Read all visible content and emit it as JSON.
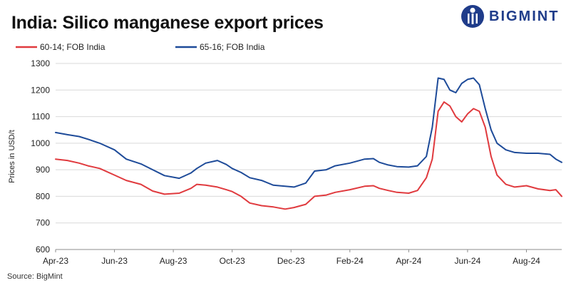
{
  "brand": {
    "name": "BIGMINT",
    "color": "#1f3c8a"
  },
  "footer": {
    "source": "Source: BigMint"
  },
  "chart_data": {
    "type": "line",
    "title": "India: Silico manganese export prices",
    "ylabel": "Prices in USD/t",
    "xlabel": "",
    "ylim": [
      600,
      1300
    ],
    "yticks": [
      600,
      700,
      800,
      900,
      1000,
      1100,
      1200,
      1300
    ],
    "x_range_months": [
      0,
      17.2
    ],
    "xticks": [
      {
        "label": "Apr-23",
        "m": 0
      },
      {
        "label": "Jun-23",
        "m": 2
      },
      {
        "label": "Aug-23",
        "m": 4
      },
      {
        "label": "Oct-23",
        "m": 6
      },
      {
        "label": "Dec-23",
        "m": 8
      },
      {
        "label": "Feb-24",
        "m": 10
      },
      {
        "label": "Apr-24",
        "m": 12
      },
      {
        "label": "Jun-24",
        "m": 14
      },
      {
        "label": "Aug-24",
        "m": 16
      }
    ],
    "grid": true,
    "legend_position": "top-left",
    "series": [
      {
        "name": "60-14; FOB India",
        "color": "#e03a3e",
        "m": [
          0,
          0.4,
          0.8,
          1.1,
          1.5,
          2.0,
          2.4,
          2.9,
          3.3,
          3.7,
          4.2,
          4.6,
          4.8,
          5.1,
          5.5,
          5.8,
          6.0,
          6.3,
          6.6,
          7.0,
          7.4,
          7.8,
          8.1,
          8.5,
          8.8,
          9.2,
          9.5,
          10.0,
          10.5,
          10.8,
          11.0,
          11.3,
          11.6,
          12.0,
          12.3,
          12.6,
          12.8,
          13.0,
          13.2,
          13.4,
          13.6,
          13.8,
          14.0,
          14.2,
          14.4,
          14.6,
          14.8,
          15.0,
          15.3,
          15.6,
          16.0,
          16.4,
          16.8,
          17.0,
          17.2
        ],
        "values": [
          940,
          935,
          925,
          915,
          905,
          880,
          860,
          845,
          820,
          808,
          812,
          830,
          845,
          842,
          835,
          825,
          818,
          800,
          775,
          765,
          760,
          752,
          758,
          770,
          800,
          805,
          815,
          825,
          838,
          840,
          830,
          822,
          815,
          812,
          822,
          870,
          940,
          1120,
          1155,
          1140,
          1100,
          1080,
          1110,
          1130,
          1120,
          1060,
          950,
          880,
          845,
          835,
          840,
          828,
          822,
          825,
          800
        ]
      },
      {
        "name": "65-16; FOB India",
        "color": "#1e4b99",
        "m": [
          0,
          0.4,
          0.8,
          1.1,
          1.5,
          2.0,
          2.4,
          2.9,
          3.3,
          3.7,
          4.2,
          4.6,
          4.8,
          5.1,
          5.5,
          5.8,
          6.0,
          6.3,
          6.6,
          7.0,
          7.4,
          7.8,
          8.1,
          8.5,
          8.8,
          9.2,
          9.5,
          10.0,
          10.5,
          10.8,
          11.0,
          11.3,
          11.6,
          12.0,
          12.3,
          12.6,
          12.8,
          13.0,
          13.2,
          13.4,
          13.6,
          13.8,
          14.0,
          14.2,
          14.4,
          14.6,
          14.8,
          15.0,
          15.3,
          15.6,
          16.0,
          16.4,
          16.8,
          17.0,
          17.2
        ],
        "values": [
          1040,
          1032,
          1025,
          1015,
          1000,
          975,
          940,
          922,
          900,
          878,
          868,
          888,
          905,
          925,
          935,
          920,
          905,
          890,
          870,
          860,
          842,
          838,
          835,
          850,
          895,
          900,
          915,
          925,
          940,
          942,
          928,
          918,
          912,
          910,
          915,
          950,
          1060,
          1245,
          1240,
          1200,
          1190,
          1225,
          1240,
          1245,
          1220,
          1130,
          1050,
          1000,
          975,
          965,
          962,
          962,
          958,
          940,
          928
        ]
      }
    ]
  }
}
